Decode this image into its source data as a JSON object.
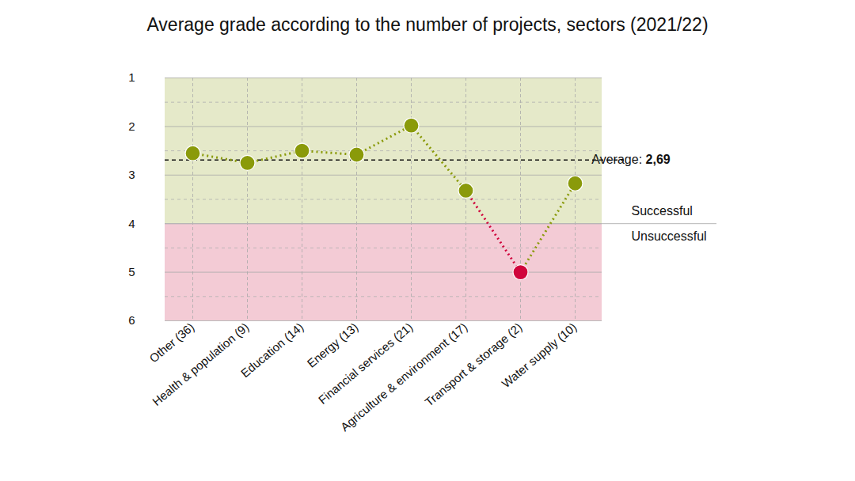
{
  "chart_data": {
    "type": "line",
    "title": "Average grade according to the number of projects, sectors (2021/22)",
    "categories": [
      "Other (36)",
      "Health & population (9)",
      "Education (14)",
      "Energy (13)",
      "Financial services (21)",
      "Agriculture & environment (17)",
      "Transport & storage (2)",
      "Water supply (10)"
    ],
    "values": [
      2.55,
      2.75,
      2.5,
      2.58,
      1.98,
      3.32,
      5.0,
      3.17
    ],
    "colors": [
      "#8a9a0a",
      "#8a9a0a",
      "#8a9a0a",
      "#8a9a0a",
      "#8a9a0a",
      "#8a9a0a",
      "#d0053c",
      "#8a9a0a"
    ],
    "line_style": "dotted",
    "marker": "circle",
    "ylim": [
      6,
      1
    ],
    "yticks": [
      1,
      2,
      3,
      4,
      5,
      6
    ],
    "grid": true,
    "average": {
      "value": 2.69,
      "label": "Average:",
      "value_label": "2,69"
    },
    "threshold": {
      "value": 4,
      "labels": [
        "Successful",
        "Unsuccessful"
      ]
    }
  }
}
